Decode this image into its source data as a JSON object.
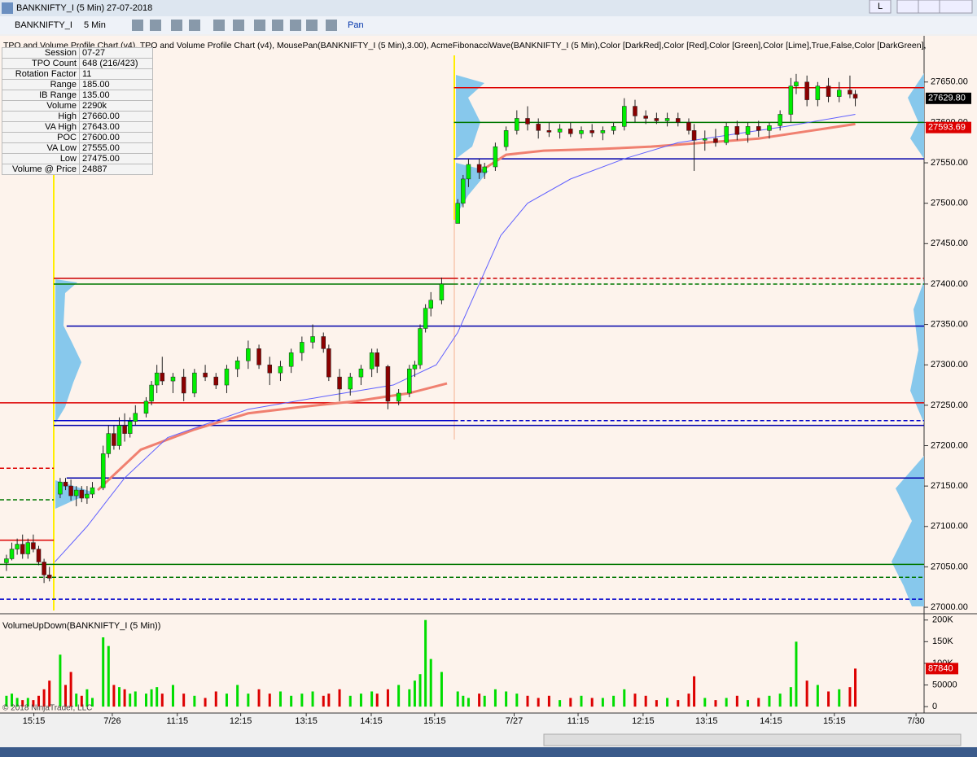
{
  "window": {
    "title": "BANKNIFTY_I (5 Min)",
    "date": "27-07-2018",
    "button": "L"
  },
  "toolbar": {
    "instrument": "BANKNIFTY_I",
    "interval": "5 Min",
    "mode": "Pan"
  },
  "indicators_label": "TPO and Volume Profile Chart (v4),  TPO and Volume Profile Chart (v4), MousePan(BANKNIFTY_I (5 Min),3.00), AcmeFibonacciWave(BANKNIFTY_I (5 Min),Color [DarkRed],Color [Red],Color [Green],Color [Lime],True,False,Color [DarkGreen],",
  "info_table": {
    "rows": [
      [
        "Session",
        "07-27"
      ],
      [
        "TPO Count",
        "648 (216/423)"
      ],
      [
        "Rotation Factor",
        "11"
      ],
      [
        "Range",
        "185.00"
      ],
      [
        "IB Range",
        "135.00"
      ],
      [
        "Volume",
        "2290k"
      ],
      [
        "High",
        "27660.00"
      ],
      [
        "VA High",
        "27643.00"
      ],
      [
        "POC",
        "27600.00"
      ],
      [
        "VA Low",
        "27555.00"
      ],
      [
        "Low",
        "27475.00"
      ],
      [
        "Volume @ Price",
        "24887"
      ]
    ]
  },
  "copyright": "© 2018 NinjaTrader, LLC",
  "chart_data": [
    {
      "type": "candlestick",
      "up_color": "#00ee00",
      "down_color": "#8b0000",
      "x": [
        0,
        1,
        2,
        3,
        4,
        5,
        6,
        7,
        8,
        10,
        11,
        12,
        13,
        14,
        15,
        16,
        18,
        19,
        20,
        21,
        22,
        23,
        24,
        26,
        27,
        28,
        29,
        31,
        33,
        35,
        37,
        39,
        41,
        43,
        45,
        47,
        49,
        51,
        53,
        55,
        57,
        59,
        60,
        62,
        64,
        66,
        68,
        69,
        71,
        73,
        75,
        76,
        77,
        78,
        79,
        81,
        84,
        85,
        86,
        88,
        89,
        91,
        93,
        95,
        97,
        99,
        101,
        103,
        105,
        107,
        109,
        111,
        113,
        115,
        117,
        119,
        121,
        123,
        125,
        127,
        128,
        130,
        132,
        134,
        136,
        138,
        140,
        142,
        144,
        146,
        147,
        149,
        151,
        153,
        155,
        157,
        158
      ],
      "open": [
        27055,
        27060,
        27072,
        27078,
        27066,
        27080,
        27072,
        27056,
        27040,
        27140,
        27155,
        27150,
        27138,
        27145,
        27135,
        27140,
        27148,
        27190,
        27215,
        27200,
        27225,
        27215,
        27230,
        27240,
        27255,
        27275,
        27290,
        27280,
        27285,
        27265,
        27290,
        27285,
        27275,
        27295,
        27305,
        27320,
        27300,
        27290,
        27298,
        27315,
        27328,
        27335,
        27320,
        27285,
        27270,
        27285,
        27295,
        27315,
        27298,
        27255,
        27265,
        27295,
        27300,
        27345,
        27370,
        27380,
        27475,
        27500,
        27530,
        27548,
        27538,
        27545,
        27570,
        27590,
        27605,
        27598,
        27590,
        27588,
        27592,
        27586,
        27590,
        27587,
        27590,
        27595,
        27620,
        27608,
        27605,
        27602,
        27605,
        27600,
        27590,
        27578,
        27580,
        27575,
        27595,
        27585,
        27595,
        27590,
        27596,
        27610,
        27645,
        27650,
        27628,
        27645,
        27632,
        27640,
        27635
      ],
      "high": [
        27065,
        27080,
        27085,
        27090,
        27085,
        27090,
        27076,
        27060,
        27050,
        27160,
        27160,
        27158,
        27150,
        27150,
        27150,
        27155,
        27200,
        27225,
        27225,
        27235,
        27240,
        27235,
        27250,
        27260,
        27280,
        27300,
        27310,
        27290,
        27295,
        27295,
        27300,
        27290,
        27300,
        27310,
        27330,
        27325,
        27310,
        27305,
        27320,
        27335,
        27350,
        27340,
        27325,
        27295,
        27290,
        27300,
        27320,
        27320,
        27300,
        27270,
        27300,
        27305,
        27350,
        27375,
        27390,
        27408,
        27505,
        27535,
        27555,
        27555,
        27550,
        27575,
        27595,
        27615,
        27620,
        27605,
        27600,
        27598,
        27600,
        27595,
        27598,
        27595,
        27600,
        27630,
        27628,
        27615,
        27612,
        27612,
        27612,
        27605,
        27598,
        27590,
        27592,
        27600,
        27602,
        27600,
        27602,
        27600,
        27615,
        27655,
        27660,
        27658,
        27650,
        27655,
        27650,
        27658,
        27640
      ],
      "low": [
        27045,
        27058,
        27065,
        27060,
        27060,
        27068,
        27052,
        27030,
        27032,
        27135,
        27145,
        27132,
        27125,
        27130,
        27128,
        27135,
        27145,
        27185,
        27195,
        27195,
        27205,
        27210,
        27225,
        27235,
        27250,
        27265,
        27275,
        27265,
        27255,
        27260,
        27280,
        27270,
        27265,
        27285,
        27295,
        27295,
        27275,
        27280,
        27290,
        27305,
        27320,
        27315,
        27280,
        27255,
        27262,
        27275,
        27285,
        27290,
        27245,
        27250,
        27260,
        27285,
        27295,
        27340,
        27360,
        27375,
        27475,
        27495,
        27520,
        27530,
        27530,
        27540,
        27565,
        27585,
        27590,
        27580,
        27582,
        27580,
        27582,
        27580,
        27582,
        27578,
        27585,
        27590,
        27600,
        27598,
        27598,
        27595,
        27595,
        27585,
        27540,
        27565,
        27570,
        27572,
        27578,
        27575,
        27582,
        27580,
        27590,
        27600,
        27635,
        27620,
        27620,
        27625,
        27625,
        27630,
        27620
      ],
      "close": [
        27060,
        27072,
        27078,
        27066,
        27080,
        27072,
        27056,
        27040,
        27036,
        27155,
        27150,
        27138,
        27145,
        27135,
        27140,
        27148,
        27190,
        27215,
        27200,
        27225,
        27215,
        27230,
        27240,
        27255,
        27275,
        27290,
        27280,
        27285,
        27265,
        27290,
        27285,
        27275,
        27295,
        27305,
        27320,
        27300,
        27290,
        27298,
        27315,
        27328,
        27335,
        27320,
        27285,
        27270,
        27285,
        27295,
        27315,
        27298,
        27255,
        27265,
        27295,
        27300,
        27345,
        27370,
        27380,
        27400,
        27500,
        27530,
        27548,
        27538,
        27545,
        27570,
        27590,
        27605,
        27598,
        27590,
        27588,
        27592,
        27586,
        27590,
        27587,
        27590,
        27595,
        27620,
        27608,
        27605,
        27602,
        27605,
        27600,
        27590,
        27578,
        27580,
        27575,
        27595,
        27585,
        27595,
        27590,
        27596,
        27610,
        27645,
        27650,
        27628,
        27645,
        27632,
        27640,
        27635,
        27630
      ],
      "lines": [
        {
          "color": "#f08070",
          "width": 3,
          "x": [
            17,
            25,
            35,
            45,
            55,
            65,
            75,
            82
          ],
          "values": [
            27145,
            27195,
            27220,
            27240,
            27248,
            27255,
            27265,
            27277
          ]
        },
        {
          "color": "#f08070",
          "width": 3,
          "x": [
            89,
            93,
            100,
            110,
            120,
            130,
            140,
            150,
            158
          ],
          "values": [
            27543,
            27560,
            27565,
            27567,
            27570,
            27575,
            27580,
            27590,
            27598
          ]
        },
        {
          "color": "#6060ff",
          "width": 1,
          "x": [
            9,
            15,
            22,
            30,
            45,
            60,
            72,
            80,
            84,
            88,
            92,
            97,
            105,
            115,
            125,
            135,
            145,
            158
          ],
          "values": [
            27056,
            27100,
            27160,
            27210,
            27245,
            27262,
            27275,
            27300,
            27340,
            27400,
            27460,
            27500,
            27530,
            27555,
            27575,
            27585,
            27595,
            27610
          ]
        }
      ],
      "levels": [
        {
          "value": 27407,
          "color": "#cc0000",
          "dash": false,
          "x": [
            8.8,
            83.3
          ]
        },
        {
          "value": 27407,
          "color": "#cc0000",
          "dash": true,
          "x": [
            83.3,
            170.8
          ]
        },
        {
          "value": 27400,
          "color": "#007700",
          "dash": false,
          "x": [
            8.8,
            83.3
          ]
        },
        {
          "value": 27400,
          "color": "#007700",
          "dash": true,
          "x": [
            83.3,
            170.8
          ]
        },
        {
          "value": 27348,
          "color": "#0000aa",
          "dash": false,
          "x": [
            11.2,
            170.8
          ]
        },
        {
          "value": 27253,
          "color": "#dd0000",
          "dash": false,
          "x": [
            -1.2,
            170.8
          ]
        },
        {
          "value": 27231,
          "color": "#0000cc",
          "dash": false,
          "x": [
            8.8,
            83.3
          ]
        },
        {
          "value": 27231,
          "color": "#0000cc",
          "dash": true,
          "x": [
            83.3,
            170.8
          ]
        },
        {
          "value": 27225,
          "color": "#0000aa",
          "dash": false,
          "x": [
            8.8,
            170.8
          ]
        },
        {
          "value": 27160,
          "color": "#0000aa",
          "dash": false,
          "x": [
            11.2,
            170.8
          ]
        },
        {
          "value": 27172,
          "color": "#dd0000",
          "dash": true,
          "x": [
            -1.2,
            8.8
          ]
        },
        {
          "value": 27133,
          "color": "#007700",
          "dash": true,
          "x": [
            -1.2,
            8.8
          ]
        },
        {
          "value": 27083,
          "color": "#dd0000",
          "dash": false,
          "x": [
            -1.2,
            8.8
          ]
        },
        {
          "value": 27053,
          "color": "#007700",
          "dash": false,
          "x": [
            -1.2,
            170.8
          ]
        },
        {
          "value": 27037,
          "color": "#007700",
          "dash": true,
          "x": [
            -1.2,
            170.8
          ]
        },
        {
          "value": 27010,
          "color": "#0000cc",
          "dash": true,
          "x": [
            -1.2,
            170.8
          ]
        },
        {
          "value": 27643,
          "color": "#dd0000",
          "dash": false,
          "x": [
            83.3,
            170.8
          ]
        },
        {
          "value": 27600,
          "color": "#007700",
          "dash": false,
          "x": [
            83.3,
            170.8
          ]
        },
        {
          "value": 27555,
          "color": "#0000aa",
          "dash": false,
          "x": [
            83.3,
            170.8
          ]
        }
      ],
      "price_labels": [
        {
          "value": 27629.8,
          "label": "27629.80",
          "color": "#000000"
        },
        {
          "value": 27593.69,
          "label": "27593.69",
          "color": "#dd0000"
        }
      ],
      "xlim": [
        -1.2,
        170.8
      ],
      "xticks": [
        {
          "value": 5.1,
          "label": "15:15"
        },
        {
          "value": 19.7,
          "label": "7/26"
        },
        {
          "value": 31.8,
          "label": "11:15"
        },
        {
          "value": 43.6,
          "label": "12:15"
        },
        {
          "value": 55.8,
          "label": "13:15"
        },
        {
          "value": 67.9,
          "label": "14:15"
        },
        {
          "value": 79.7,
          "label": "15:15"
        },
        {
          "value": 94.5,
          "label": "7/27"
        },
        {
          "value": 106.4,
          "label": "11:15"
        },
        {
          "value": 118.5,
          "label": "12:15"
        },
        {
          "value": 130.3,
          "label": "13:15"
        },
        {
          "value": 142.3,
          "label": "14:15"
        },
        {
          "value": 154.1,
          "label": "15:15"
        },
        {
          "value": 169.3,
          "label": "7/30"
        }
      ],
      "ylim": [
        26994,
        27683
      ],
      "yticks": [
        {
          "value": 27000,
          "label": "27000.00"
        },
        {
          "value": 27050,
          "label": "27050.00"
        },
        {
          "value": 27100,
          "label": "27100.00"
        },
        {
          "value": 27150,
          "label": "27150.00"
        },
        {
          "value": 27200,
          "label": "27200.00"
        },
        {
          "value": 27250,
          "label": "27250.00"
        },
        {
          "value": 27300,
          "label": "27300.00"
        },
        {
          "value": 27350,
          "label": "27350.00"
        },
        {
          "value": 27400,
          "label": "27400.00"
        },
        {
          "value": 27450,
          "label": "27450.00"
        },
        {
          "value": 27500,
          "label": "27500.00"
        },
        {
          "value": 27550,
          "label": "27550.00"
        },
        {
          "value": 27600,
          "label": "27600.00"
        },
        {
          "value": 27650,
          "label": "27650.00"
        }
      ]
    },
    {
      "type": "bar",
      "title": "VolumeUpDown(BANKNIFTY_I (5 Min))",
      "up_color": "#00dd00",
      "down_color": "#dd0000",
      "last_label_color": "#dd0000",
      "x": [
        0,
        1,
        2,
        3,
        4,
        5,
        6,
        7,
        8,
        10,
        11,
        12,
        13,
        14,
        15,
        16,
        18,
        19,
        20,
        21,
        22,
        23,
        24,
        26,
        27,
        28,
        29,
        31,
        33,
        35,
        37,
        39,
        41,
        43,
        45,
        47,
        49,
        51,
        53,
        55,
        57,
        59,
        60,
        62,
        64,
        66,
        68,
        69,
        71,
        73,
        75,
        76,
        77,
        78,
        79,
        81,
        84,
        85,
        86,
        88,
        89,
        91,
        93,
        95,
        97,
        99,
        101,
        103,
        105,
        107,
        109,
        111,
        113,
        115,
        117,
        119,
        121,
        123,
        125,
        127,
        128,
        130,
        132,
        134,
        136,
        138,
        140,
        142,
        144,
        146,
        147,
        149,
        151,
        153,
        155,
        157,
        158
      ],
      "values": [
        25000,
        30000,
        20000,
        15000,
        20000,
        15000,
        25000,
        40000,
        60000,
        120000,
        50000,
        80000,
        30000,
        25000,
        40000,
        20000,
        160000,
        140000,
        50000,
        45000,
        40000,
        30000,
        35000,
        30000,
        40000,
        45000,
        30000,
        50000,
        30000,
        25000,
        20000,
        35000,
        30000,
        50000,
        30000,
        40000,
        30000,
        35000,
        25000,
        30000,
        35000,
        25000,
        30000,
        40000,
        25000,
        30000,
        35000,
        30000,
        40000,
        50000,
        40000,
        60000,
        75000,
        200000,
        110000,
        80000,
        35000,
        25000,
        20000,
        30000,
        25000,
        40000,
        35000,
        30000,
        25000,
        20000,
        25000,
        15000,
        20000,
        25000,
        20000,
        20000,
        25000,
        40000,
        30000,
        25000,
        15000,
        20000,
        15000,
        30000,
        70000,
        20000,
        15000,
        20000,
        25000,
        15000,
        20000,
        25000,
        30000,
        45000,
        150000,
        60000,
        50000,
        35000,
        40000,
        45000,
        87840
      ],
      "ylim": [
        -13000,
        207000
      ],
      "yticks": [
        {
          "value": 200000,
          "label": "200K"
        },
        {
          "value": 150000,
          "label": "150K"
        },
        {
          "value": 100000,
          "label": "100K"
        },
        50000,
        0
      ]
    }
  ]
}
